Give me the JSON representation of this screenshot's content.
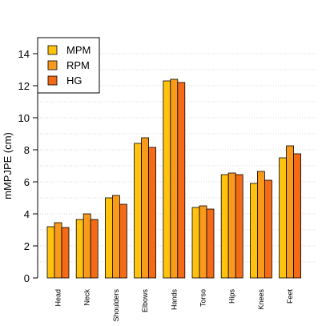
{
  "chart_data": {
    "type": "bar",
    "title": "",
    "xlabel": "",
    "ylabel": "mMPJPE (cm)",
    "ylim": [
      0,
      15
    ],
    "yticks": [
      0,
      2,
      4,
      6,
      8,
      10,
      12,
      14
    ],
    "grid": true,
    "legend_position": "top-left",
    "categories": [
      "Head",
      "Neck",
      "Shoulders",
      "Elbows",
      "Hands",
      "Torso",
      "Hips",
      "Knees",
      "Feet"
    ],
    "series": [
      {
        "name": "MPM",
        "color": "#FFC20E",
        "values": [
          3.2,
          3.65,
          5.0,
          8.4,
          12.3,
          4.4,
          6.45,
          5.9,
          7.5
        ]
      },
      {
        "name": "RPM",
        "color": "#F99A1C",
        "values": [
          3.45,
          4.0,
          5.15,
          8.75,
          12.4,
          4.5,
          6.55,
          6.65,
          8.25
        ]
      },
      {
        "name": "HG",
        "color": "#F36B16",
        "values": [
          3.15,
          3.65,
          4.6,
          8.15,
          12.2,
          4.3,
          6.45,
          6.1,
          7.75
        ]
      }
    ]
  }
}
